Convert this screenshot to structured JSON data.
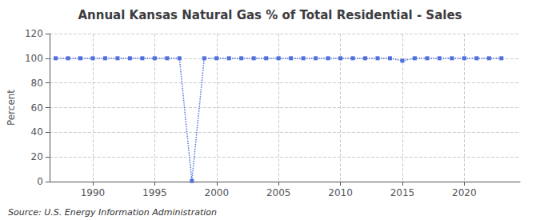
{
  "chart_data": {
    "type": "line",
    "title": "Annual Kansas Natural Gas % of Total Residential - Sales",
    "ylabel": "Percent",
    "annotations": [
      "Source: U.S. Energy Information Administration"
    ],
    "x": [
      1987,
      1988,
      1989,
      1990,
      1991,
      1992,
      1993,
      1994,
      1995,
      1996,
      1997,
      1998,
      1999,
      2000,
      2001,
      2002,
      2003,
      2004,
      2005,
      2006,
      2007,
      2008,
      2009,
      2010,
      2011,
      2012,
      2013,
      2014,
      2015,
      2016,
      2017,
      2018,
      2019,
      2020,
      2021,
      2022,
      2023
    ],
    "values": [
      100,
      100,
      100,
      100,
      100,
      100,
      100,
      100,
      100,
      100,
      100,
      0.5,
      100,
      100,
      100,
      100,
      100,
      100,
      100,
      100,
      100,
      100,
      100,
      100,
      100,
      100,
      100,
      100,
      98,
      100,
      100,
      100,
      100,
      100,
      100,
      100,
      100
    ],
    "xlim": [
      1986.5,
      2024.5
    ],
    "xticks": [
      1990,
      1995,
      2000,
      2005,
      2010,
      2015,
      2020
    ],
    "ylim": [
      0,
      120
    ],
    "yticks": [
      0,
      20,
      40,
      60,
      80,
      100,
      120
    ],
    "grid": true,
    "marker": "square",
    "line_style": "dotted"
  }
}
